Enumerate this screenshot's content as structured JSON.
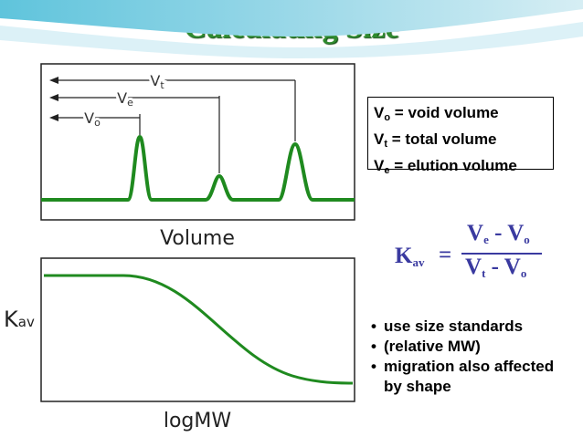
{
  "slide": {
    "title": "Calculating Size",
    "colors": {
      "title": "#2e8b2e",
      "curve": "#1f8a1f",
      "formula": "#3a3aa0"
    }
  },
  "top_plot": {
    "x_axis_label": "Volume",
    "vt_label": "V",
    "vt_sub": "t",
    "ve_label": "V",
    "ve_sub": "e",
    "vo_label": "V",
    "vo_sub": "o"
  },
  "bottom_plot": {
    "x_axis_label": "logMW",
    "y_axis_label": "K",
    "y_axis_sub": "av"
  },
  "definitions": [
    {
      "symbol": "V",
      "sub": "o",
      "text": " = void volume"
    },
    {
      "symbol": "V",
      "sub": "t",
      "text": " = total volume"
    },
    {
      "symbol": "V",
      "sub": "e",
      "text": " = elution volume"
    }
  ],
  "formula": {
    "lhs": "K",
    "lhs_sub": "av",
    "equals": "=",
    "num_a": "V",
    "num_a_sub": "e",
    "num_op": " - ",
    "num_b": "V",
    "num_b_sub": "o",
    "den_a": "V",
    "den_a_sub": "t",
    "den_op": " - ",
    "den_b": "V",
    "den_b_sub": "o"
  },
  "bullets": [
    "use size standards",
    "(relative MW)",
    "migration also affected by shape"
  ]
}
